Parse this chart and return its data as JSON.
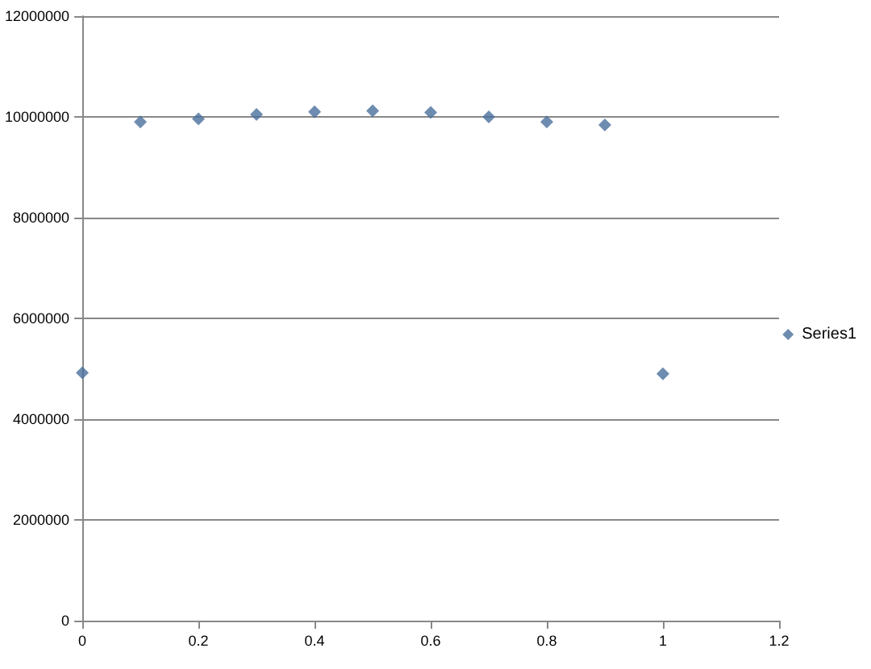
{
  "chart_data": {
    "type": "scatter",
    "x": [
      0,
      0.1,
      0.2,
      0.3,
      0.4,
      0.5,
      0.6,
      0.7,
      0.8,
      0.9,
      1
    ],
    "series": [
      {
        "name": "Series1",
        "color": "#4a6f9c",
        "values": [
          4920000,
          9900000,
          9960000,
          10050000,
          10100000,
          10120000,
          10090000,
          10000000,
          9900000,
          9840000,
          4900000
        ]
      }
    ],
    "xlim": [
      0,
      1.2
    ],
    "xticks": [
      0,
      0.2,
      0.4,
      0.6,
      0.8,
      1,
      1.2
    ],
    "ylim": [
      0,
      12000000
    ],
    "yticks": [
      0,
      2000000,
      4000000,
      6000000,
      8000000,
      10000000,
      12000000
    ],
    "grid": "y",
    "legend": "right",
    "marker": "diamond"
  }
}
